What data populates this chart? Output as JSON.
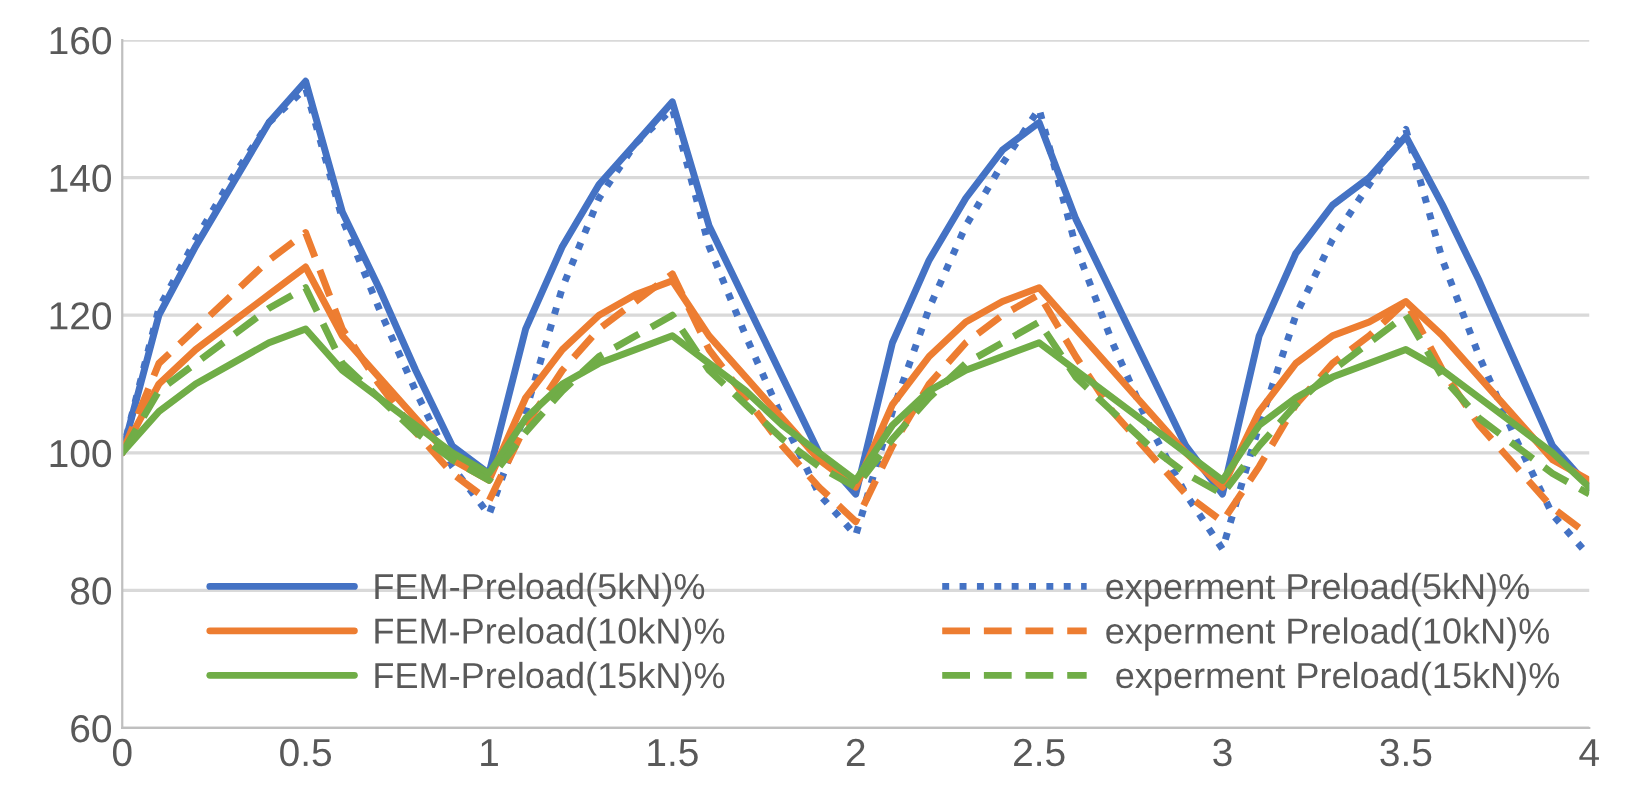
{
  "chart_data": {
    "type": "line",
    "x": [
      0,
      0.1,
      0.2,
      0.3,
      0.4,
      0.5,
      0.6,
      0.7,
      0.8,
      0.9,
      1.0,
      1.1,
      1.2,
      1.3,
      1.4,
      1.5,
      1.6,
      1.7,
      1.8,
      1.9,
      2.0,
      2.1,
      2.2,
      2.3,
      2.4,
      2.5,
      2.6,
      2.7,
      2.8,
      2.9,
      3.0,
      3.1,
      3.2,
      3.3,
      3.4,
      3.5,
      3.6,
      3.7,
      3.8,
      3.9,
      4.0
    ],
    "series": [
      {
        "name": "FEM-Preload(5kN)%",
        "color": "#4472c4",
        "line_style": "solid",
        "values": [
          100,
          120,
          130,
          139,
          148,
          154,
          135,
          124,
          112,
          101,
          97,
          118,
          130,
          139,
          145,
          151,
          133,
          122,
          111,
          100,
          94,
          116,
          128,
          137,
          144,
          148,
          134,
          123,
          112,
          101,
          94,
          117,
          129,
          136,
          140,
          146,
          136,
          125,
          113,
          101,
          95
        ]
      },
      {
        "name": "experment Preload(5kN)%",
        "color": "#4472c4",
        "line_style": "dotted",
        "values": [
          100,
          121,
          131,
          140,
          148,
          153,
          134,
          121,
          109,
          98,
          91,
          106,
          124,
          137,
          145,
          150,
          130,
          117,
          105,
          94,
          88,
          106,
          121,
          133,
          142,
          150,
          130,
          116,
          104,
          94,
          86,
          104,
          120,
          131,
          139,
          147,
          128,
          114,
          102,
          91,
          85
        ]
      },
      {
        "name": "FEM-Preload(10kN)%",
        "color": "#ed7d31",
        "line_style": "solid",
        "values": [
          100,
          110,
          115,
          119,
          123,
          127,
          117,
          111,
          105,
          99,
          96,
          108,
          115,
          120,
          123,
          125,
          117,
          111,
          105,
          99,
          95,
          107,
          114,
          119,
          122,
          124,
          118,
          112,
          106,
          100,
          95,
          106,
          113,
          117,
          119,
          122,
          117,
          111,
          105,
          99,
          96
        ]
      },
      {
        "name": "experment Preload(10kN)%",
        "color": "#ed7d31",
        "line_style": "dashed",
        "values": [
          100,
          113,
          118,
          123,
          128,
          132,
          118,
          110,
          103,
          97,
          93,
          104,
          112,
          118,
          122,
          126,
          115,
          108,
          101,
          95,
          90,
          101,
          110,
          116,
          120,
          123,
          114,
          106,
          100,
          94,
          90,
          98,
          107,
          113,
          117,
          122,
          112,
          104,
          98,
          92,
          88
        ]
      },
      {
        "name": "FEM-Preload(15kN)%",
        "color": "#70ad47",
        "line_style": "solid",
        "values": [
          100,
          106,
          110,
          113,
          116,
          118,
          112,
          108,
          104,
          100,
          97,
          105,
          110,
          113,
          115,
          117,
          113,
          109,
          104,
          100,
          96,
          104,
          109,
          112,
          114,
          116,
          112,
          108,
          104,
          100,
          96,
          104,
          108,
          111,
          113,
          115,
          112,
          108,
          104,
          100,
          95
        ]
      },
      {
        "name": " experment Preload(15kN)%",
        "color": "#70ad47",
        "line_style": "dashed",
        "values": [
          100,
          109,
          113,
          117,
          121,
          124,
          113,
          108,
          103,
          99,
          96,
          103,
          109,
          114,
          117,
          120,
          112,
          107,
          102,
          98,
          95,
          102,
          108,
          113,
          116,
          119,
          111,
          106,
          101,
          97,
          94,
          101,
          107,
          112,
          116,
          120,
          111,
          105,
          101,
          97,
          94
        ]
      }
    ],
    "xlim": [
      0,
      4
    ],
    "xticks": [
      0,
      0.5,
      1,
      1.5,
      2,
      2.5,
      3,
      3.5,
      4
    ],
    "ylim": [
      60,
      160
    ],
    "yticks": [
      60,
      80,
      100,
      120,
      140,
      160
    ],
    "grid": "y",
    "legend": "bottom"
  }
}
